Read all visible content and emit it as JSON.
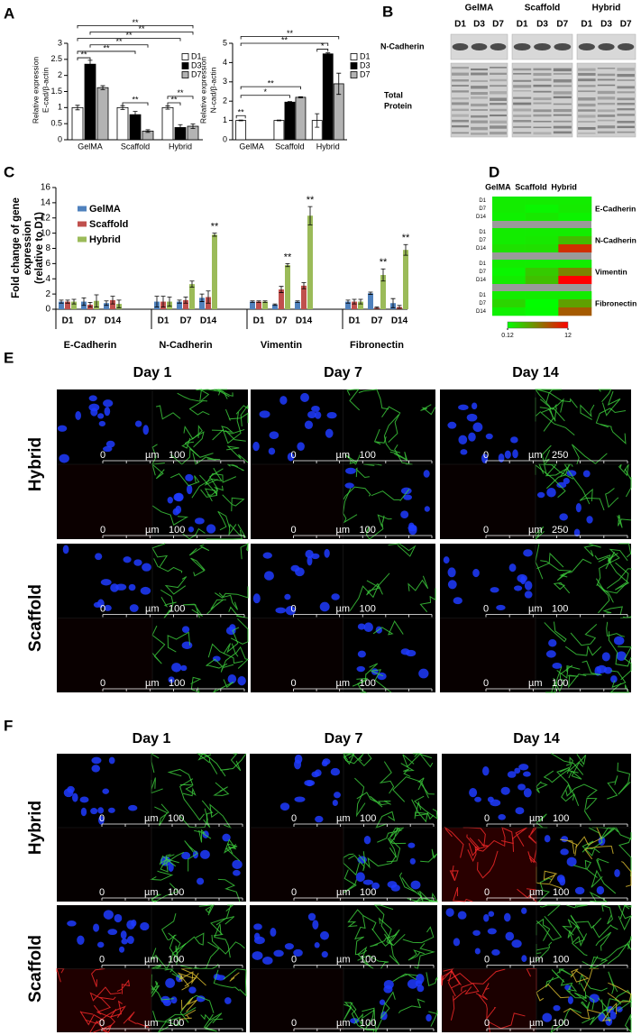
{
  "panel_labels": [
    "A",
    "B",
    "C",
    "D",
    "E",
    "F"
  ],
  "chart_data": [
    {
      "type": "bar",
      "ylabel": [
        "Relative expression",
        "E-cad/β-actin"
      ],
      "categories": [
        "GelMA",
        "Scaffold",
        "Hybrid"
      ],
      "series": [
        {
          "name": "D1",
          "color": "#ffffff",
          "values": [
            1.0,
            1.0,
            1.0
          ],
          "errors": [
            0.07,
            0.06,
            0.05
          ]
        },
        {
          "name": "D3",
          "color": "#000000",
          "values": [
            2.35,
            0.78,
            0.38
          ],
          "errors": [
            0.12,
            0.1,
            0.09
          ]
        },
        {
          "name": "D7",
          "color": "#b3b3b3",
          "values": [
            1.62,
            0.27,
            0.42
          ],
          "errors": [
            0.06,
            0.04,
            0.07
          ]
        }
      ],
      "ylim": [
        0,
        3
      ],
      "yticks": [
        0,
        0.5,
        1,
        1.5,
        2,
        2.5,
        3
      ],
      "legend": "upper right",
      "annotations": [
        "**",
        "**",
        "**",
        "**",
        "**",
        "**",
        "**",
        "**",
        "**"
      ]
    },
    {
      "type": "bar",
      "ylabel": [
        "Relative expression",
        "N-cad/β-actin"
      ],
      "categories": [
        "GelMA",
        "Scaffold",
        "Hybrid"
      ],
      "series": [
        {
          "name": "D1",
          "color": "#ffffff",
          "values": [
            1.0,
            1.0,
            1.0
          ],
          "errors": [
            0.02,
            0.02,
            0.35
          ]
        },
        {
          "name": "D3",
          "color": "#000000",
          "values": [
            null,
            1.95,
            4.45
          ],
          "errors": [
            null,
            0.03,
            0.05
          ]
        },
        {
          "name": "D7",
          "color": "#b3b3b3",
          "values": [
            null,
            2.2,
            2.9
          ],
          "errors": [
            null,
            0.03,
            0.55
          ]
        }
      ],
      "ylim": [
        0,
        5
      ],
      "yticks": [
        0,
        1,
        2,
        3,
        4,
        5
      ],
      "legend": "upper right",
      "annotations": [
        "**",
        "*",
        "**",
        "**",
        "**",
        "*"
      ]
    },
    {
      "type": "bar",
      "ylabel": [
        "Fold change of gene",
        "expression",
        "(relative to D1)"
      ],
      "categories": [
        "D1",
        "D7",
        "D14",
        "D1",
        "D7",
        "D14",
        "D1",
        "D7",
        "D14",
        "D1",
        "D7",
        "D14"
      ],
      "groups": [
        "E-Cadherin",
        "N-Cadherin",
        "Vimentin",
        "Fibronectin"
      ],
      "series": [
        {
          "name": "GelMA",
          "color": "#4f81bd",
          "values": [
            1,
            1.0,
            0.8,
            1,
            1,
            1.5,
            1,
            0.6,
            1,
            1,
            2.1,
            0.8
          ],
          "errors": [
            0.2,
            0.5,
            0.3,
            0.7,
            0.2,
            0.5,
            0.1,
            0.1,
            0.1,
            0.2,
            0.15,
            0.6
          ]
        },
        {
          "name": "Scaffold",
          "color": "#c0504d",
          "values": [
            1,
            0.6,
            1.2,
            1,
            1.2,
            1.6,
            1,
            2.6,
            3.1,
            1,
            0.2,
            0.3
          ],
          "errors": [
            0.2,
            0.3,
            0.5,
            0.7,
            0.4,
            0.8,
            0.1,
            0.4,
            0.4,
            0.3,
            0.1,
            0.2
          ]
        },
        {
          "name": "Hybrid",
          "color": "#9bbb59",
          "values": [
            1,
            1.1,
            0.7,
            1,
            3.3,
            9.8,
            1,
            5.8,
            12.3,
            1,
            4.5,
            7.8
          ],
          "errors": [
            0.3,
            0.8,
            0.5,
            0.6,
            0.4,
            0.2,
            0.1,
            0.2,
            1.2,
            0.3,
            0.8,
            0.7
          ]
        }
      ],
      "ylim": [
        0,
        16
      ],
      "yticks": [
        0,
        2,
        4,
        6,
        8,
        10,
        12,
        14,
        16
      ],
      "legend": "upper left",
      "annotations": [
        "**",
        "**",
        "**",
        "**",
        "**"
      ]
    },
    {
      "type": "heatmap",
      "columns": [
        "GelMA",
        "Scaffold",
        "Hybrid"
      ],
      "rows": [
        "D1",
        "D7",
        "D14"
      ],
      "blocks": [
        "E-Cadherin",
        "N-Cadherin",
        "Vimentin",
        "Fibronectin"
      ],
      "values": [
        [
          [
            1,
            1,
            1
          ],
          [
            1.0,
            0.6,
            1.1
          ],
          [
            0.8,
            1.2,
            0.7
          ]
        ],
        [
          [
            1,
            1,
            1
          ],
          [
            1,
            1.2,
            3.3
          ],
          [
            1.5,
            1.6,
            9.8
          ]
        ],
        [
          [
            1,
            1,
            1
          ],
          [
            0.6,
            2.6,
            5.8
          ],
          [
            1,
            3.1,
            12
          ]
        ],
        [
          [
            1,
            1,
            1
          ],
          [
            2.1,
            0.2,
            4.5
          ],
          [
            0.8,
            0.3,
            7.8
          ]
        ]
      ],
      "clim": [
        0.12,
        12
      ],
      "cticks": [
        0.12,
        12
      ],
      "colors": [
        "#00ff00",
        "#ff0000"
      ]
    }
  ],
  "blot": {
    "groups": [
      "GelMA",
      "Scaffold",
      "Hybrid"
    ],
    "lanes": [
      "D1",
      "D3",
      "D7"
    ],
    "rows": [
      "N-Cadherin",
      [
        "Total",
        "Protein"
      ]
    ]
  },
  "microscopy": [
    {
      "days": [
        "Day 1",
        "Day 7",
        "Day 14"
      ],
      "rows": [
        "Hybrid",
        "Scaffold"
      ],
      "scale": {
        "zero": "0",
        "unit": "µm",
        "max": [
          [
            "100",
            "100",
            "250"
          ],
          [
            "100",
            "100",
            "100"
          ]
        ]
      }
    },
    {
      "days": [
        "Day 1",
        "Day 7",
        "Day 14"
      ],
      "rows": [
        "Hybrid",
        "Scaffold"
      ],
      "scale": {
        "zero": "0",
        "unit": "µm",
        "max": [
          [
            "100",
            "100",
            "100"
          ],
          [
            "100",
            "100",
            "100"
          ]
        ]
      }
    }
  ]
}
